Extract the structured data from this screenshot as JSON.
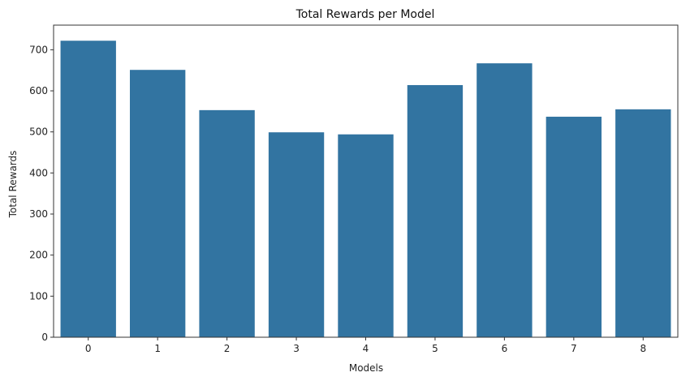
{
  "chart_data": {
    "type": "bar",
    "title": "Total Rewards per Model",
    "xlabel": "Models",
    "ylabel": "Total Rewards",
    "categories": [
      "0",
      "1",
      "2",
      "3",
      "4",
      "5",
      "6",
      "7",
      "8"
    ],
    "values": [
      722,
      651,
      553,
      499,
      494,
      614,
      667,
      537,
      555
    ],
    "ylim": [
      0,
      760
    ],
    "yticks": [
      "0",
      "100",
      "200",
      "300",
      "400",
      "500",
      "600",
      "700"
    ],
    "grid": false,
    "legend": "none",
    "bar_color": "#3274a1"
  }
}
